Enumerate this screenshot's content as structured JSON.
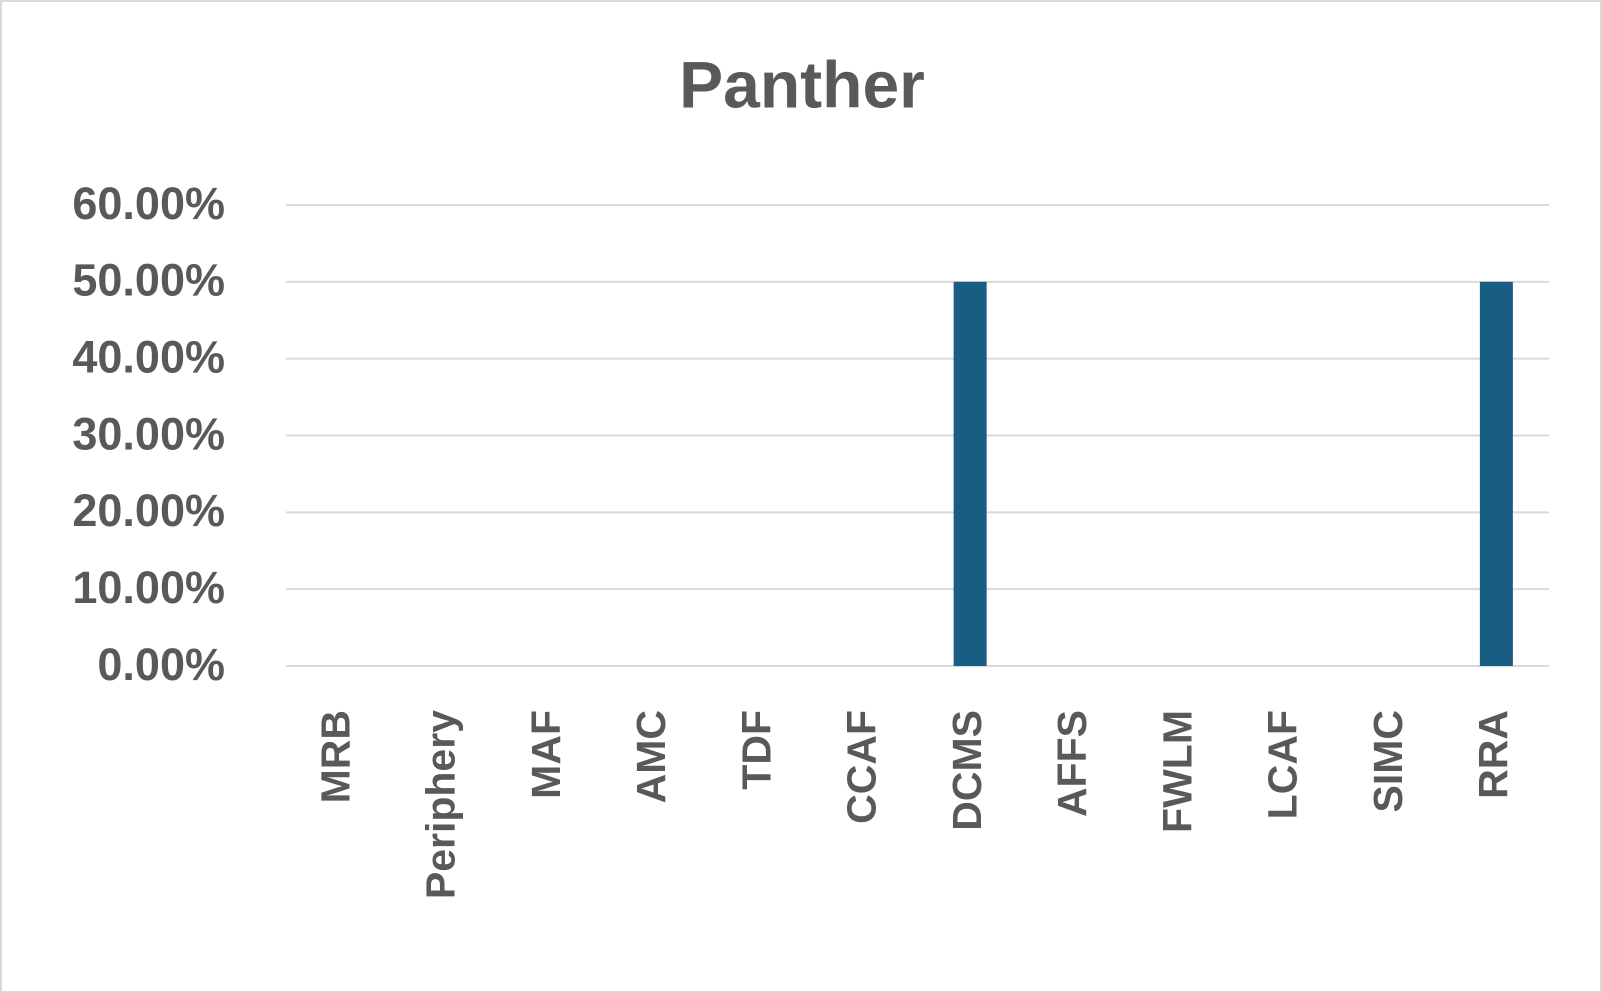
{
  "chart_data": {
    "type": "bar",
    "title": "Panther",
    "categories": [
      "MRB",
      "Periphery",
      "MAF",
      "AMC",
      "TDF",
      "CCAF",
      "DCMS",
      "AFFS",
      "FWLM",
      "LCAF",
      "SIMC",
      "RRA"
    ],
    "values": [
      0,
      0,
      0,
      0,
      0,
      0,
      50,
      0,
      0,
      0,
      0,
      50
    ],
    "color": "#175e82",
    "ylim": [
      0,
      60
    ],
    "yticks": [
      {
        "value": 0,
        "label": "0.00%"
      },
      {
        "value": 10,
        "label": "10.00%"
      },
      {
        "value": 20,
        "label": "20.00%"
      },
      {
        "value": 30,
        "label": "30.00%"
      },
      {
        "value": 40,
        "label": "40.00%"
      },
      {
        "value": 50,
        "label": "50.00%"
      },
      {
        "value": 60,
        "label": "60.00%"
      }
    ],
    "grid": true
  }
}
